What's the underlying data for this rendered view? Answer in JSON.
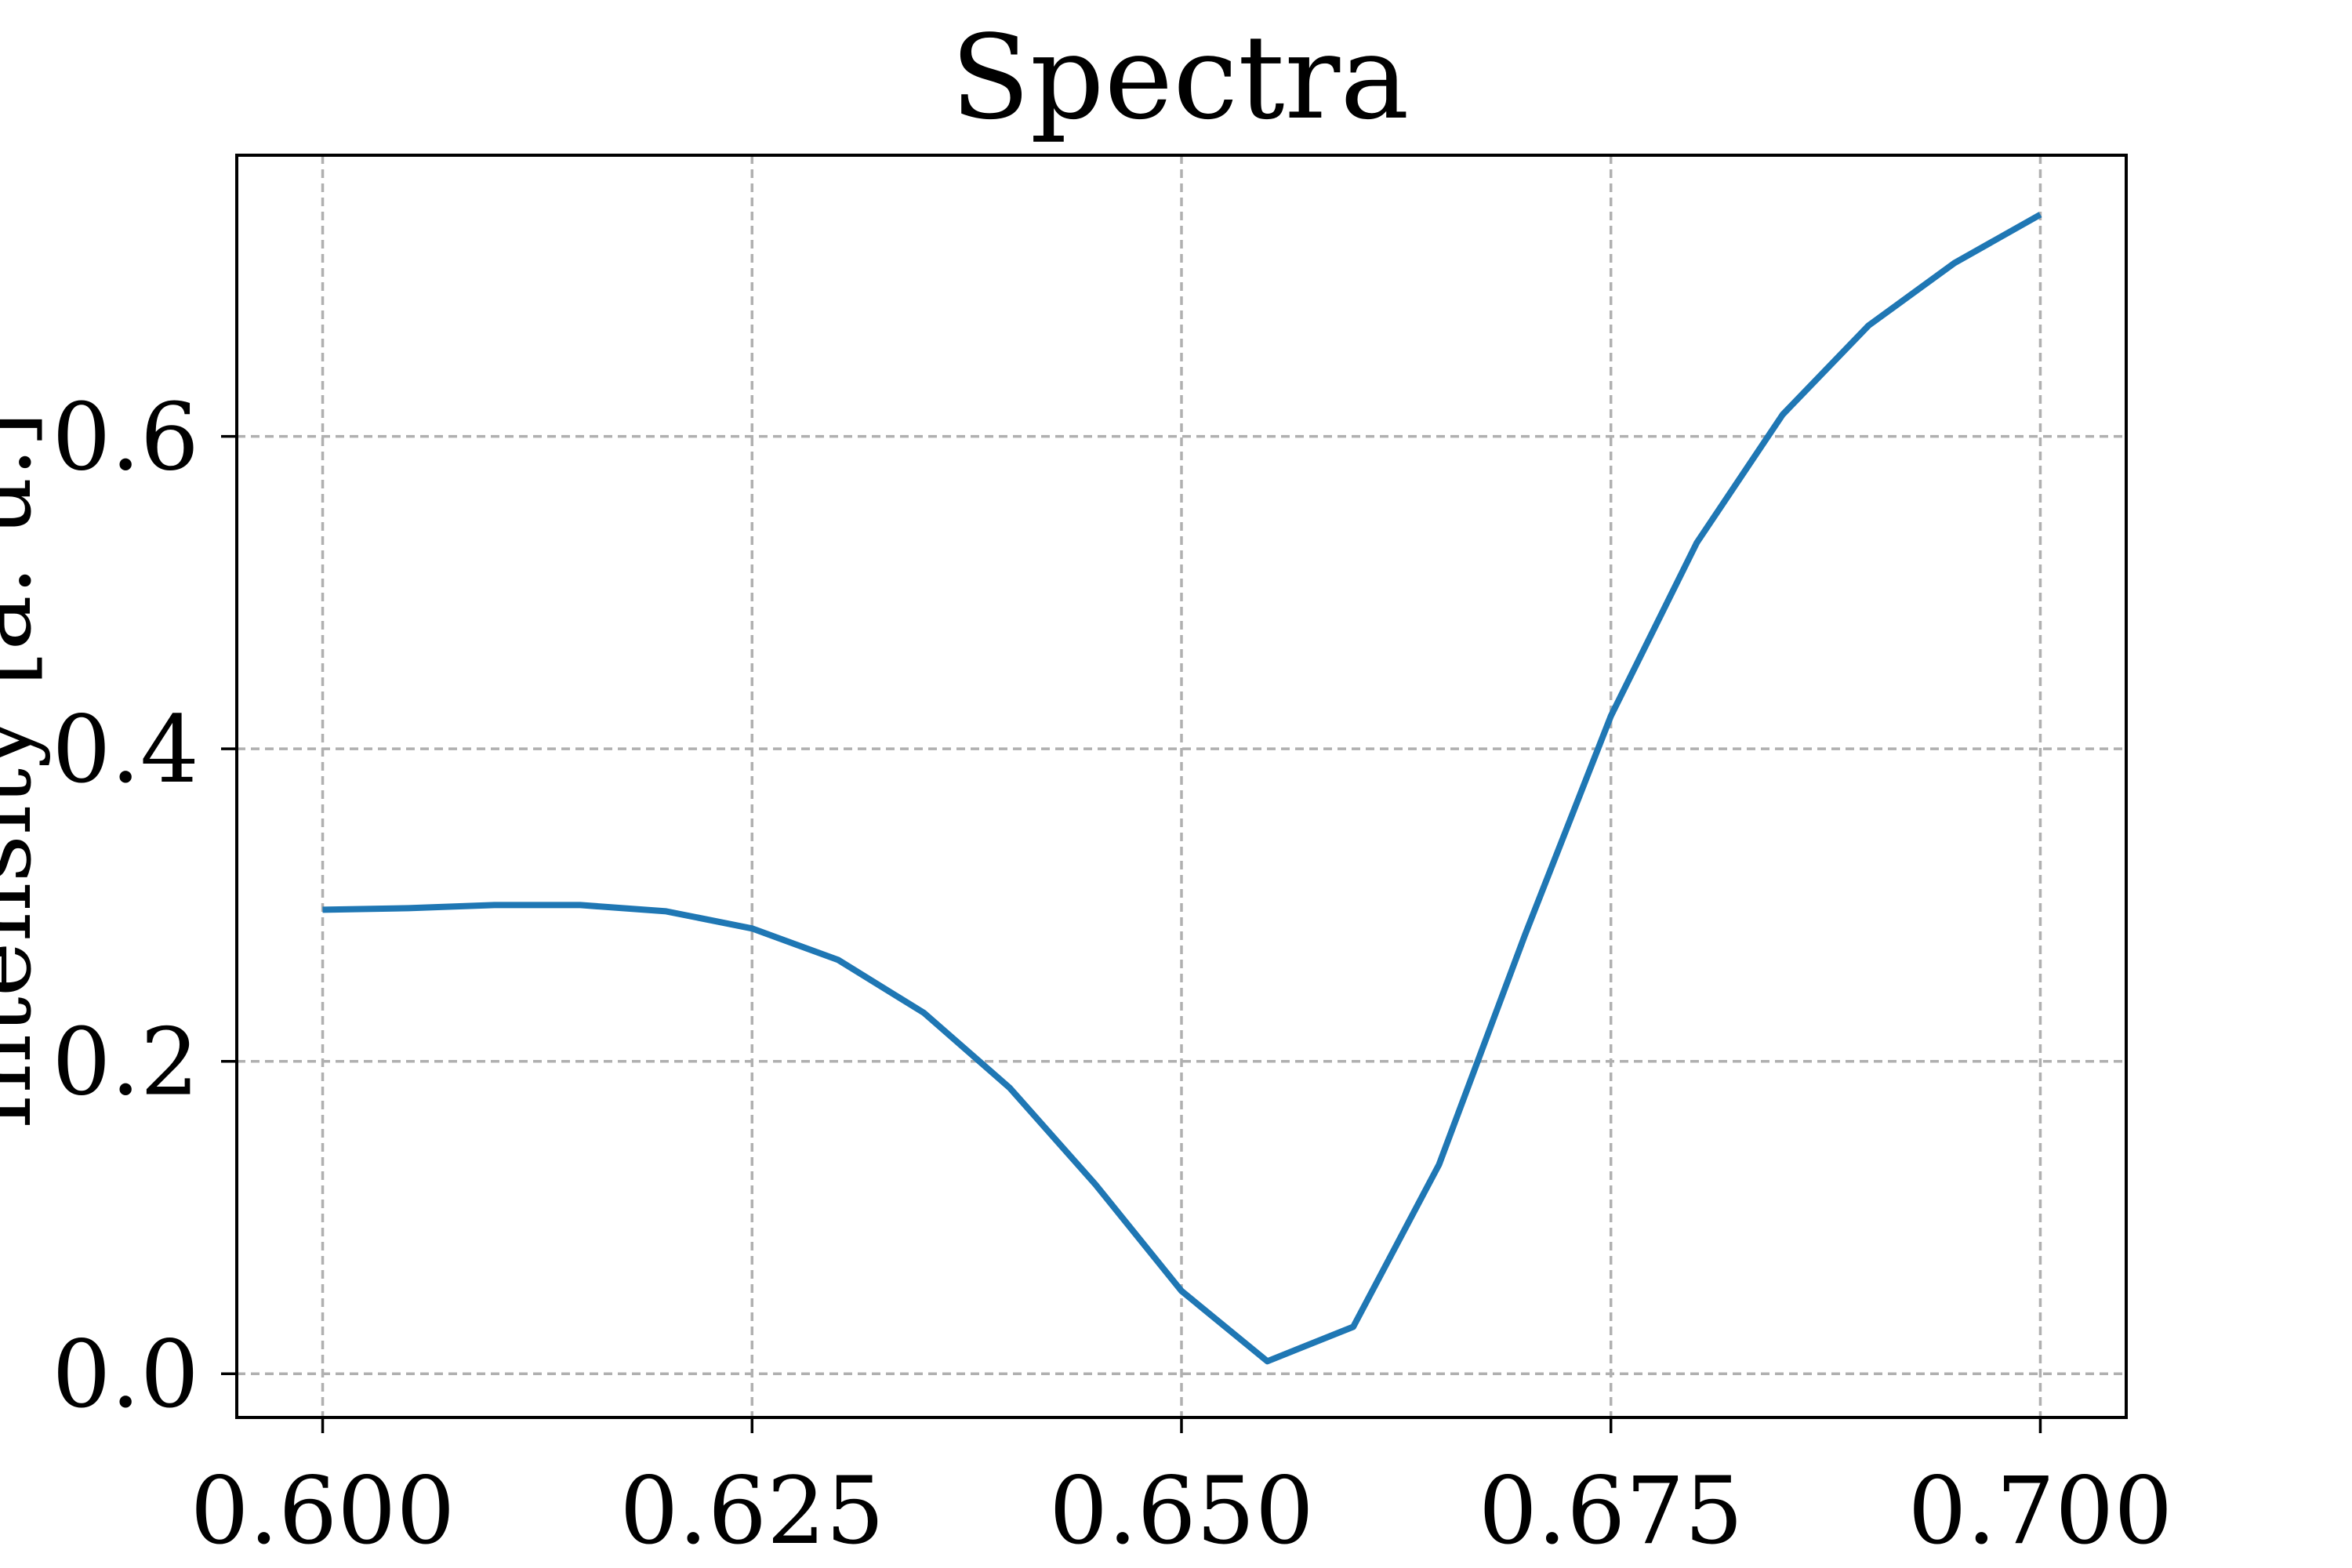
{
  "chart_data": {
    "type": "line",
    "title": "Spectra",
    "xlabel": "",
    "ylabel": "Intensity [a. u.]",
    "xlim": [
      0.595,
      0.705
    ],
    "ylim": [
      -0.028,
      0.78
    ],
    "x_ticks": [
      0.6,
      0.625,
      0.65,
      0.675,
      0.7
    ],
    "x_tick_labels": [
      "0.600",
      "0.625",
      "0.650",
      "0.675",
      "0.700"
    ],
    "y_ticks": [
      0.0,
      0.2,
      0.4,
      0.6
    ],
    "y_tick_labels": [
      "0.0",
      "0.2",
      "0.4",
      "0.6"
    ],
    "grid": true,
    "legend": "none",
    "series": [
      {
        "color": "#1f77b4",
        "x": [
          0.6,
          0.605,
          0.61,
          0.615,
          0.62,
          0.625,
          0.63,
          0.635,
          0.64,
          0.645,
          0.65,
          0.655,
          0.66,
          0.665,
          0.67,
          0.675,
          0.68,
          0.685,
          0.69,
          0.695,
          0.7
        ],
        "y": [
          0.297,
          0.298,
          0.3,
          0.3,
          0.296,
          0.285,
          0.265,
          0.231,
          0.183,
          0.121,
          0.053,
          0.008,
          0.03,
          0.134,
          0.281,
          0.421,
          0.532,
          0.614,
          0.671,
          0.711,
          0.742
        ]
      }
    ]
  }
}
